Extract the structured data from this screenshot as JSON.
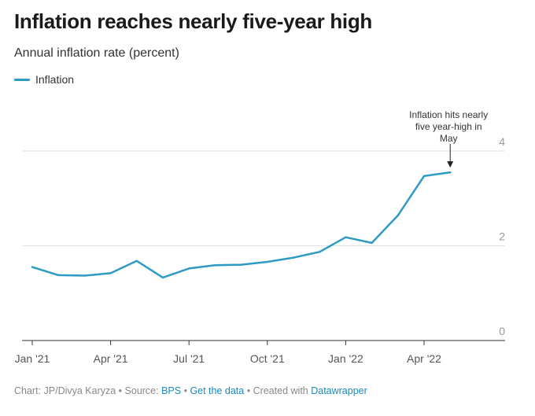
{
  "header": {
    "title": "Inflation reaches nearly five-year high",
    "subtitle": "Annual inflation rate (percent)"
  },
  "legend": {
    "label": "Inflation"
  },
  "colors": {
    "series": "#2d9bc4",
    "grid": "#e2e2e2",
    "axis": "#333333",
    "link": "#1a8bb9"
  },
  "annotation": {
    "lines": [
      "Inflation hits nearly",
      "five year-high in",
      "May"
    ],
    "target_index": 16
  },
  "chart_data": {
    "type": "line",
    "x": [
      "Jan '21",
      "Feb '21",
      "Mar '21",
      "Apr '21",
      "May '21",
      "Jun '21",
      "Jul '21",
      "Aug '21",
      "Sep '21",
      "Oct '21",
      "Nov '21",
      "Dec '21",
      "Jan '22",
      "Feb '22",
      "Mar '22",
      "Apr '22",
      "May '22"
    ],
    "x_tick_labels": [
      "Jan '21",
      "Apr '21",
      "Jul '21",
      "Oct '21",
      "Jan '22",
      "Apr '22"
    ],
    "x_tick_index": [
      0,
      3,
      6,
      9,
      12,
      15
    ],
    "series": [
      {
        "name": "Inflation",
        "values": [
          1.55,
          1.38,
          1.37,
          1.42,
          1.68,
          1.33,
          1.52,
          1.59,
          1.6,
          1.66,
          1.75,
          1.87,
          2.18,
          2.06,
          2.64,
          3.47,
          3.55
        ]
      }
    ],
    "ylim": [
      0,
      4
    ],
    "y_ticks": [
      0,
      2,
      4
    ],
    "grid": true,
    "legend_position": "top-left"
  },
  "footer": {
    "prefix": "Chart: JP/Divya Karyza • Source: ",
    "source_link": "BPS",
    "sep1": " • ",
    "data_link": "Get the data",
    "sep2": " • Created with ",
    "tool_link": "Datawrapper"
  }
}
